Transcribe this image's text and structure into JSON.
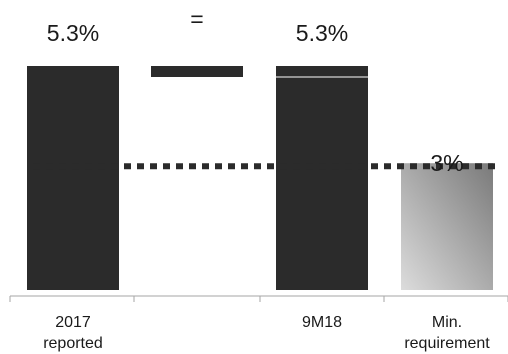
{
  "chart_data": {
    "type": "bar",
    "categories": [
      {
        "line1": "2017",
        "line2": "reported"
      },
      {
        "line1": "",
        "line2": ""
      },
      {
        "line1": "9M18",
        "line2": ""
      },
      {
        "line1": "Min.",
        "line2": "requirement"
      }
    ],
    "bars": [
      {
        "value": 5.3,
        "base": 0,
        "label": "5.3%",
        "color": "#2b2b2b"
      },
      {
        "value": 5.3,
        "base": 5.0,
        "label": "=",
        "color": "#2b2b2b"
      },
      {
        "value": 5.3,
        "base": 0,
        "label": "5.3%",
        "color": "#2b2b2b"
      },
      {
        "value": 3,
        "base": 0,
        "label": "3%",
        "color": "#9a9a9a"
      }
    ],
    "threshold": 3,
    "ylim": [
      0,
      5.3
    ],
    "grid": false,
    "xlabel": "",
    "ylabel": "",
    "colors": {
      "bar": "#2b2b2b",
      "min_bar_light": "#dcdcdc",
      "min_bar_dark": "#7a7a7a",
      "dotted_line": "#2b2b2b",
      "dotted_line_light": "#9a9a9a",
      "axis": "#a6a6a6"
    }
  }
}
